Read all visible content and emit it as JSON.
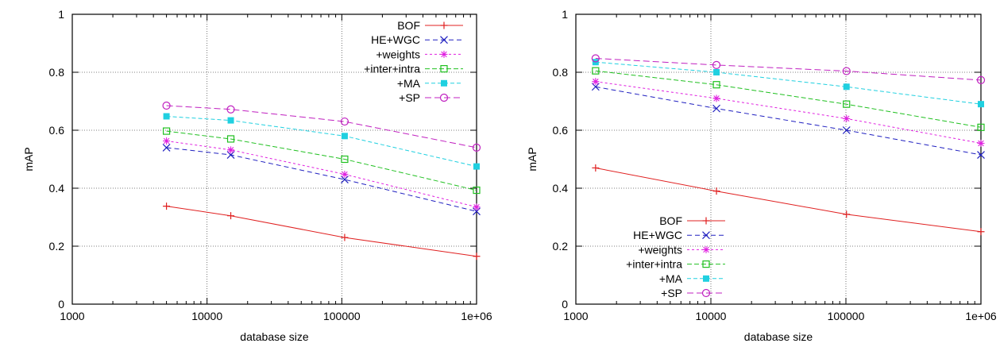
{
  "chart_data": [
    {
      "type": "line",
      "xscale": "log",
      "xlim": [
        1000,
        1000000
      ],
      "ylim": [
        0,
        1
      ],
      "xticks": [
        1000,
        10000,
        100000,
        1000000
      ],
      "xtick_labels": [
        "1000",
        "10000",
        "100000",
        "1e+06"
      ],
      "yticks": [
        0,
        0.2,
        0.4,
        0.6,
        0.8,
        1
      ],
      "ytick_labels": [
        "0",
        "0.2",
        "0.4",
        "0.6",
        "0.8",
        "1"
      ],
      "xlabel": "database size",
      "ylabel": "mAP",
      "grid": true,
      "legend": "top-right",
      "series": [
        {
          "name": "BOF",
          "color": "#e02020",
          "marker": "plus",
          "dash": "",
          "x": [
            5000,
            15000,
            105000,
            1000000
          ],
          "y": [
            0.338,
            0.305,
            0.23,
            0.165
          ]
        },
        {
          "name": "HE+WGC",
          "color": "#2020c0",
          "marker": "x",
          "dash": "6,4",
          "x": [
            5000,
            15000,
            105000,
            1000000
          ],
          "y": [
            0.54,
            0.515,
            0.43,
            0.32
          ]
        },
        {
          "name": "+weights",
          "color": "#e020e0",
          "marker": "star",
          "dash": "3,3",
          "x": [
            5000,
            15000,
            105000,
            1000000
          ],
          "y": [
            0.563,
            0.532,
            0.448,
            0.335
          ]
        },
        {
          "name": "+inter+intra",
          "color": "#20c020",
          "marker": "square-open",
          "dash": "6,3",
          "x": [
            5000,
            15000,
            105000,
            1000000
          ],
          "y": [
            0.597,
            0.57,
            0.5,
            0.393
          ]
        },
        {
          "name": "+MA",
          "color": "#20d0e0",
          "marker": "square-filled",
          "dash": "5,3",
          "x": [
            5000,
            15000,
            105000,
            1000000
          ],
          "y": [
            0.648,
            0.634,
            0.58,
            0.475
          ]
        },
        {
          "name": "+SP",
          "color": "#c020c0",
          "marker": "circle-open",
          "dash": "8,4",
          "x": [
            5000,
            15000,
            105000,
            1000000
          ],
          "y": [
            0.685,
            0.672,
            0.63,
            0.54
          ]
        }
      ]
    },
    {
      "type": "line",
      "xscale": "log",
      "xlim": [
        1000,
        1000000
      ],
      "ylim": [
        0,
        1
      ],
      "xticks": [
        1000,
        10000,
        100000,
        1000000
      ],
      "xtick_labels": [
        "1000",
        "10000",
        "100000",
        "1e+06"
      ],
      "yticks": [
        0,
        0.2,
        0.4,
        0.6,
        0.8,
        1
      ],
      "ytick_labels": [
        "0",
        "0.2",
        "0.4",
        "0.6",
        "0.8",
        "1"
      ],
      "xlabel": "database size",
      "ylabel": "mAP",
      "grid": true,
      "legend": "bottom-left",
      "series": [
        {
          "name": "BOF",
          "color": "#e02020",
          "marker": "plus",
          "dash": "",
          "x": [
            1400,
            11000,
            101000,
            1000000
          ],
          "y": [
            0.47,
            0.39,
            0.31,
            0.25
          ]
        },
        {
          "name": "HE+WGC",
          "color": "#2020c0",
          "marker": "x",
          "dash": "6,4",
          "x": [
            1400,
            11000,
            101000,
            1000000
          ],
          "y": [
            0.75,
            0.675,
            0.6,
            0.515
          ]
        },
        {
          "name": "+weights",
          "color": "#e020e0",
          "marker": "star",
          "dash": "3,3",
          "x": [
            1400,
            11000,
            101000,
            1000000
          ],
          "y": [
            0.768,
            0.71,
            0.64,
            0.555
          ]
        },
        {
          "name": "+inter+intra",
          "color": "#20c020",
          "marker": "square-open",
          "dash": "6,3",
          "x": [
            1400,
            11000,
            101000,
            1000000
          ],
          "y": [
            0.805,
            0.757,
            0.69,
            0.61
          ]
        },
        {
          "name": "+MA",
          "color": "#20d0e0",
          "marker": "square-filled",
          "dash": "5,3",
          "x": [
            1400,
            11000,
            101000,
            1000000
          ],
          "y": [
            0.835,
            0.8,
            0.75,
            0.69
          ]
        },
        {
          "name": "+SP",
          "color": "#c020c0",
          "marker": "circle-open",
          "dash": "8,4",
          "x": [
            1400,
            11000,
            101000,
            1000000
          ],
          "y": [
            0.848,
            0.825,
            0.804,
            0.773
          ]
        }
      ]
    }
  ]
}
